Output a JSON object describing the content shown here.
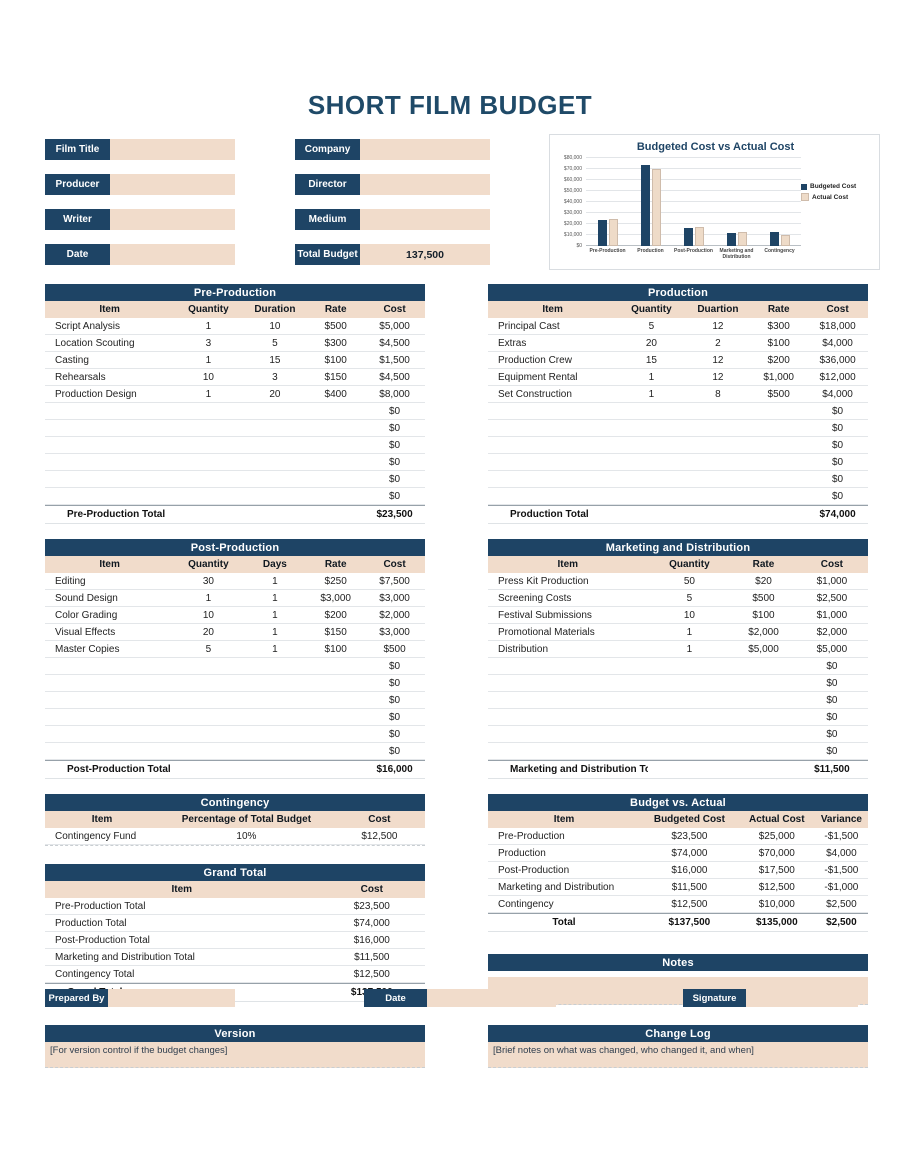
{
  "page_title": "SHORT FILM BUDGET",
  "colors": {
    "navy": "#1e4465",
    "beige": "#f1dccb",
    "title_navy": "#1f4a68",
    "actual_bar": "#eedbc8",
    "actual_bar_border": "#cfbcab"
  },
  "form": {
    "left": [
      {
        "label": "Film Title",
        "value": ""
      },
      {
        "label": "Producer",
        "value": ""
      },
      {
        "label": "Writer",
        "value": ""
      },
      {
        "label": "Date",
        "value": ""
      }
    ],
    "right": [
      {
        "label": "Company",
        "value": ""
      },
      {
        "label": "Director",
        "value": ""
      },
      {
        "label": "Medium",
        "value": ""
      },
      {
        "label": "Total Budget",
        "value": "137,500"
      }
    ]
  },
  "chart_data": {
    "type": "bar",
    "title": "Budgeted Cost vs Actual Cost",
    "categories": [
      "Pre-Production",
      "Production",
      "Post-Production",
      "Marketing and Distribution",
      "Contingency"
    ],
    "series": [
      {
        "name": "Budgeted Cost",
        "color": "#1e4465",
        "values": [
          23500,
          74000,
          16000,
          11500,
          12500
        ]
      },
      {
        "name": "Actual Cost",
        "color": "#eedbc8",
        "border": "#cfbcab",
        "values": [
          25000,
          70000,
          17500,
          12500,
          10000
        ]
      }
    ],
    "ylim": [
      0,
      80000
    ],
    "ytick_step": 10000,
    "yticks": [
      "$0",
      "$10,000",
      "$20,000",
      "$30,000",
      "$40,000",
      "$50,000",
      "$60,000",
      "$70,000",
      "$80,000"
    ],
    "legend_position": "right",
    "grid": true
  },
  "tables": {
    "pre_production": {
      "title": "Pre-Production",
      "columns": [
        "Item",
        "Quantity",
        "Duration",
        "Rate",
        "Cost"
      ],
      "widths": [
        "34%",
        "18%",
        "17%",
        "15%",
        "16%"
      ],
      "aligns": [
        "left",
        "center",
        "center",
        "center",
        "center"
      ],
      "editable": true,
      "rows": [
        [
          "Script Analysis",
          "1",
          "10",
          "$500",
          "$5,000"
        ],
        [
          "Location Scouting",
          "3",
          "5",
          "$300",
          "$4,500"
        ],
        [
          "Casting",
          "1",
          "15",
          "$100",
          "$1,500"
        ],
        [
          "Rehearsals",
          "10",
          "3",
          "$150",
          "$4,500"
        ],
        [
          "Production Design",
          "1",
          "20",
          "$400",
          "$8,000"
        ],
        [
          "",
          "",
          "",
          "",
          "$0"
        ],
        [
          "",
          "",
          "",
          "",
          "$0"
        ],
        [
          "",
          "",
          "",
          "",
          "$0"
        ],
        [
          "",
          "",
          "",
          "",
          "$0"
        ],
        [
          "",
          "",
          "",
          "",
          "$0"
        ],
        [
          "",
          "",
          "",
          "",
          "$0"
        ]
      ],
      "total_row": [
        "Pre-Production Total",
        "",
        "",
        "",
        "$23,500"
      ]
    },
    "production": {
      "title": "Production",
      "columns": [
        "Item",
        "Quantity",
        "Duartion",
        "Rate",
        "Cost"
      ],
      "widths": [
        "34%",
        "18%",
        "17%",
        "15%",
        "16%"
      ],
      "aligns": [
        "left",
        "center",
        "center",
        "center",
        "center"
      ],
      "editable": true,
      "rows": [
        [
          "Principal Cast",
          "5",
          "12",
          "$300",
          "$18,000"
        ],
        [
          "Extras",
          "20",
          "2",
          "$100",
          "$4,000"
        ],
        [
          "Production Crew",
          "15",
          "12",
          "$200",
          "$36,000"
        ],
        [
          "Equipment Rental",
          "1",
          "12",
          "$1,000",
          "$12,000"
        ],
        [
          "Set Construction",
          "1",
          "8",
          "$500",
          "$4,000"
        ],
        [
          "",
          "",
          "",
          "",
          "$0"
        ],
        [
          "",
          "",
          "",
          "",
          "$0"
        ],
        [
          "",
          "",
          "",
          "",
          "$0"
        ],
        [
          "",
          "",
          "",
          "",
          "$0"
        ],
        [
          "",
          "",
          "",
          "",
          "$0"
        ],
        [
          "",
          "",
          "",
          "",
          "$0"
        ]
      ],
      "total_row": [
        "Production Total",
        "",
        "",
        "",
        "$74,000"
      ]
    },
    "post_production": {
      "title": "Post-Production",
      "columns": [
        "Item",
        "Quantity",
        "Days",
        "Rate",
        "Cost"
      ],
      "widths": [
        "34%",
        "18%",
        "17%",
        "15%",
        "16%"
      ],
      "aligns": [
        "left",
        "center",
        "center",
        "center",
        "center"
      ],
      "editable": true,
      "rows": [
        [
          "Editing",
          "30",
          "1",
          "$250",
          "$7,500"
        ],
        [
          "Sound Design",
          "1",
          "1",
          "$3,000",
          "$3,000"
        ],
        [
          "Color Grading",
          "10",
          "1",
          "$200",
          "$2,000"
        ],
        [
          "Visual Effects",
          "20",
          "1",
          "$150",
          "$3,000"
        ],
        [
          "Master Copies",
          "5",
          "1",
          "$100",
          "$500"
        ],
        [
          "",
          "",
          "",
          "",
          "$0"
        ],
        [
          "",
          "",
          "",
          "",
          "$0"
        ],
        [
          "",
          "",
          "",
          "",
          "$0"
        ],
        [
          "",
          "",
          "",
          "",
          "$0"
        ],
        [
          "",
          "",
          "",
          "",
          "$0"
        ],
        [
          "",
          "",
          "",
          "",
          "$0"
        ]
      ],
      "total_row": [
        "Post-Production Total",
        "",
        "",
        "",
        "$16,000"
      ]
    },
    "marketing": {
      "title": "Marketing and Distribution",
      "columns": [
        "Item",
        "Quantity",
        "Rate",
        "Cost"
      ],
      "widths": [
        "42%",
        "22%",
        "17%",
        "19%"
      ],
      "aligns": [
        "left",
        "center",
        "center",
        "center"
      ],
      "editable": true,
      "rows": [
        [
          "Press Kit Production",
          "50",
          "$20",
          "$1,000"
        ],
        [
          "Screening Costs",
          "5",
          "$500",
          "$2,500"
        ],
        [
          "Festival Submissions",
          "10",
          "$100",
          "$1,000"
        ],
        [
          "Promotional Materials",
          "1",
          "$2,000",
          "$2,000"
        ],
        [
          "Distribution",
          "1",
          "$5,000",
          "$5,000"
        ],
        [
          "",
          "",
          "",
          "$0"
        ],
        [
          "",
          "",
          "",
          "$0"
        ],
        [
          "",
          "",
          "",
          "$0"
        ],
        [
          "",
          "",
          "",
          "$0"
        ],
        [
          "",
          "",
          "",
          "$0"
        ],
        [
          "",
          "",
          "",
          "$0"
        ]
      ],
      "total_row": [
        "Marketing and Distribution Total",
        "",
        "",
        "$11,500"
      ]
    },
    "contingency": {
      "title": "Contingency",
      "columns": [
        "Item",
        "Percentage of Total Budget",
        "Cost"
      ],
      "widths": [
        "30%",
        "46%",
        "24%"
      ],
      "aligns": [
        "left",
        "center",
        "center"
      ],
      "editable": true,
      "dashed_end": true,
      "rows": [
        [
          "Contingency Fund",
          "10%",
          "$12,500"
        ]
      ]
    },
    "grand_total": {
      "title": "Grand Total",
      "columns": [
        "Item",
        "Cost"
      ],
      "widths": [
        "72%",
        "28%"
      ],
      "aligns": [
        "left",
        "center"
      ],
      "editable": false,
      "rows": [
        [
          "Pre-Production Total",
          "$23,500"
        ],
        [
          "Production Total",
          "$74,000"
        ],
        [
          "Post-Production Total",
          "$16,000"
        ],
        [
          "Marketing and Distribution Total",
          "$11,500"
        ],
        [
          "Contingency Total",
          "$12,500"
        ]
      ],
      "total_row": [
        "Grand Total",
        "$137,500"
      ]
    },
    "budget_vs_actual": {
      "title": "Budget vs. Actual",
      "columns": [
        "Item",
        "Budgeted Cost",
        "Actual Cost",
        "Variance"
      ],
      "widths": [
        "40%",
        "26%",
        "20%",
        "14%"
      ],
      "aligns": [
        "left",
        "center",
        "center",
        "center"
      ],
      "editable": false,
      "rows": [
        [
          "Pre-Production",
          "$23,500",
          "$25,000",
          "-$1,500"
        ],
        [
          "Production",
          "$74,000",
          "$70,000",
          "$4,000"
        ],
        [
          "Post-Production",
          "$16,000",
          "$17,500",
          "-$1,500"
        ],
        [
          "Marketing and Distribution",
          "$11,500",
          "$12,500",
          "-$1,000"
        ],
        [
          "Contingency",
          "$12,500",
          "$10,000",
          "$2,500"
        ]
      ],
      "total_row": [
        "Total",
        "$137,500",
        "$135,000",
        "$2,500"
      ]
    }
  },
  "notes": {
    "title": "Notes",
    "content": ""
  },
  "footer": {
    "prepared_by_label": "Prepared By",
    "date_label": "Date",
    "signature_label": "Signature"
  },
  "version": {
    "title": "Version",
    "note": "[For version control if the budget changes]"
  },
  "change_log": {
    "title": "Change Log",
    "note": "[Brief notes on what was changed, who changed it, and when]"
  }
}
